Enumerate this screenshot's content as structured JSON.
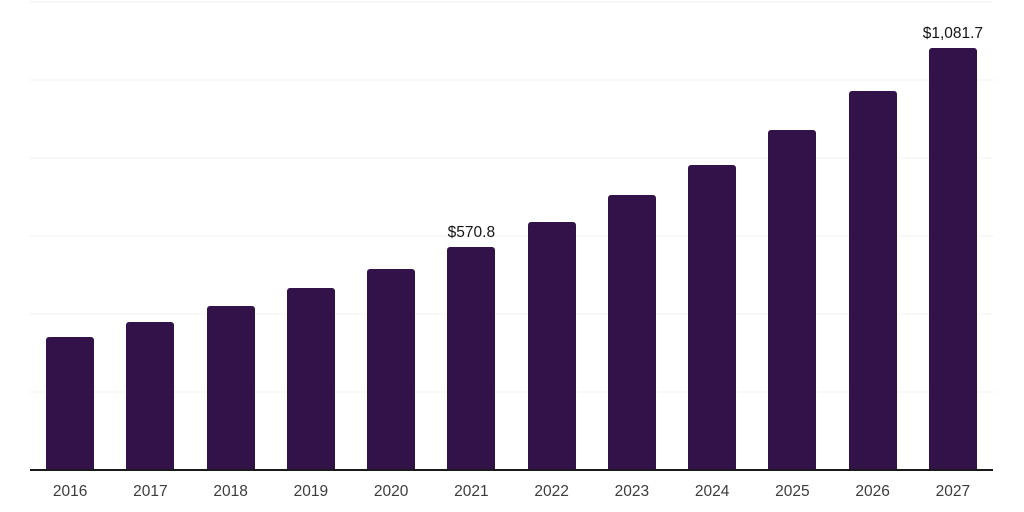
{
  "chart_data": {
    "type": "bar",
    "title": "",
    "xlabel": "",
    "ylabel": "",
    "categories": [
      "2016",
      "2017",
      "2018",
      "2019",
      "2020",
      "2021",
      "2022",
      "2023",
      "2024",
      "2025",
      "2026",
      "2027"
    ],
    "values": [
      342.1,
      379.0,
      421.8,
      466.4,
      515.9,
      570.8,
      634.8,
      704.1,
      782.1,
      872.7,
      972.8,
      1081.7
    ],
    "value_labels": [
      "",
      "",
      "",
      "",
      "",
      "$570.8",
      "",
      "",
      "",
      "",
      "",
      "$1,081.7"
    ],
    "ylim": [
      0,
      1200
    ],
    "gridline_step": 200,
    "grid": true,
    "legend": "none",
    "y_tick_labels_visible": false,
    "currency_prefix": "$"
  },
  "style": {
    "bar_color": "#33124a",
    "gridline_color": "#f0f0f2",
    "axis_color": "#1a1a1a",
    "tick_label_color": "#3c3c3c",
    "value_label_color": "#141414",
    "background_color": "#ffffff"
  }
}
